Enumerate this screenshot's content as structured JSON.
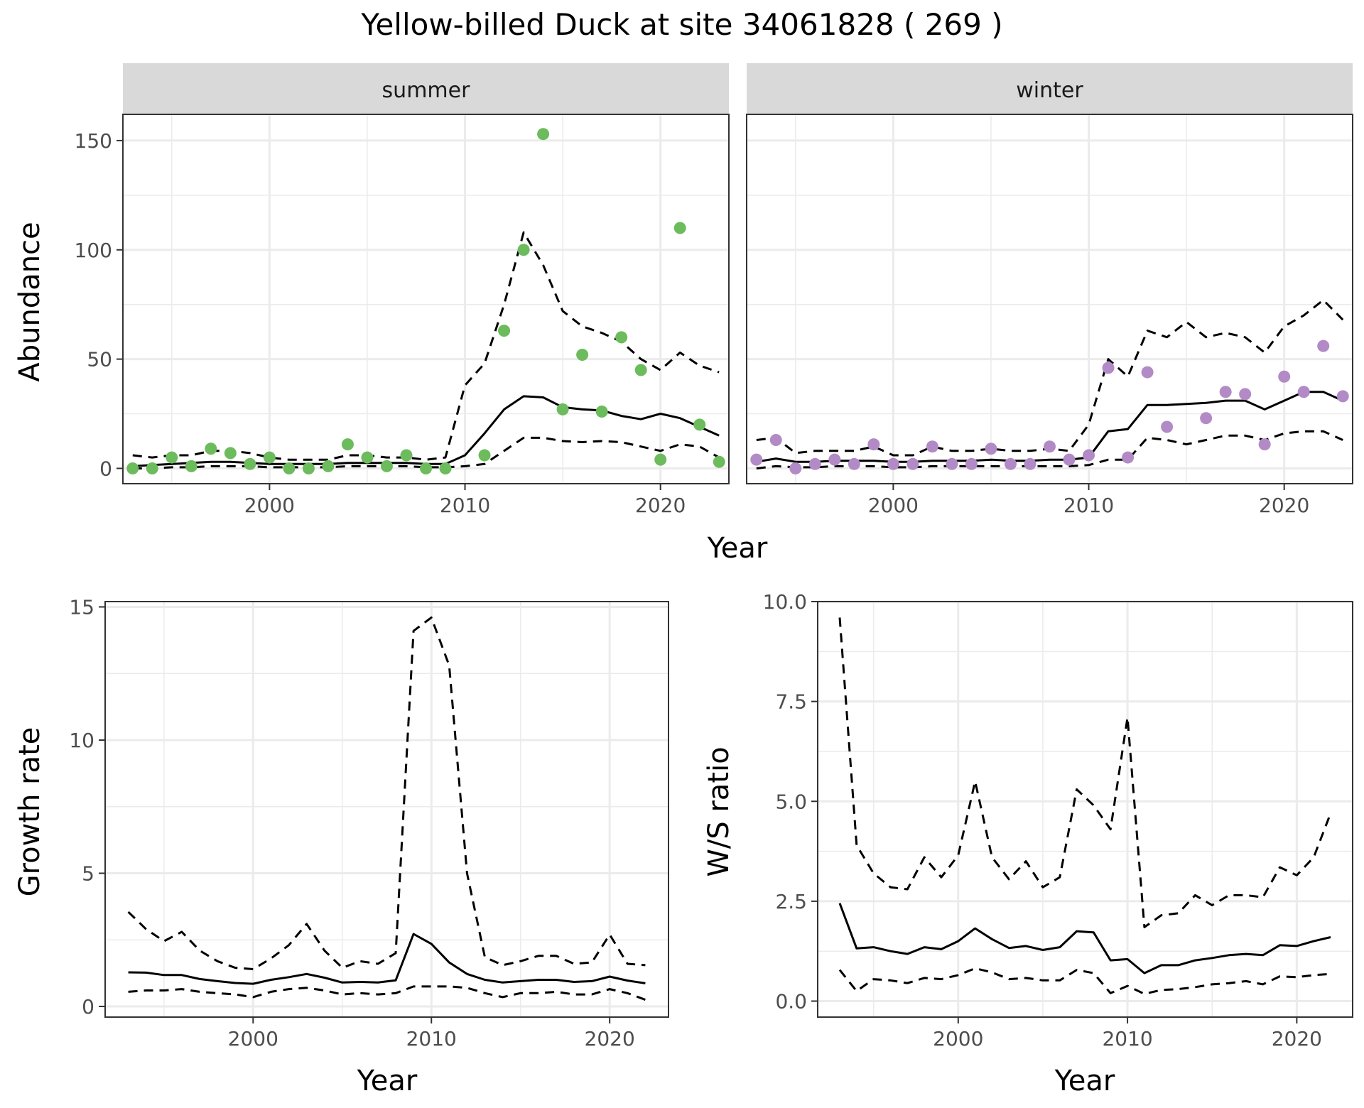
{
  "title": "Yellow-billed Duck at site 34061828 ( 269 )",
  "colors": {
    "summer_points": "#6cbb5c",
    "winter_points": "#b28ac6",
    "line": "#000000",
    "strip_fill": "#d9d9d9",
    "grid": "#ebebeb"
  },
  "chart_data": [
    {
      "type": "scatter",
      "facet": "summer",
      "xlabel": "Year",
      "ylabel": "Abundance",
      "xlim": [
        1992.5,
        2023.5
      ],
      "ylim": [
        -7,
        162
      ],
      "x_ticks": [
        2000,
        2010,
        2020
      ],
      "y_ticks": [
        0,
        50,
        100,
        150
      ],
      "grid": true,
      "points": {
        "x": [
          1993,
          1994,
          1995,
          1996,
          1997,
          1998,
          1999,
          2000,
          2001,
          2002,
          2003,
          2004,
          2005,
          2006,
          2007,
          2008,
          2009,
          2011,
          2012,
          2013,
          2014,
          2015,
          2016,
          2017,
          2018,
          2019,
          2020,
          2021,
          2022,
          2023
        ],
        "y": [
          0,
          0,
          5,
          1,
          9,
          7,
          2,
          5,
          0,
          0,
          1,
          11,
          5,
          1,
          6,
          0,
          0,
          6,
          63,
          100,
          153,
          27,
          52,
          26,
          60,
          45,
          4,
          110,
          20,
          3
        ]
      },
      "series": [
        {
          "name": "",
          "style": "solid",
          "x": [
            1993,
            1994,
            1995,
            1996,
            1997,
            1998,
            1999,
            2000,
            2001,
            2002,
            2003,
            2004,
            2005,
            2006,
            2007,
            2008,
            2009,
            2010,
            2011,
            2012,
            2013,
            2014,
            2015,
            2016,
            2017,
            2018,
            2019,
            2020,
            2021,
            2022,
            2023
          ],
          "y": [
            1,
            1.5,
            2,
            2.5,
            3,
            3,
            2.5,
            2,
            2,
            2,
            2,
            2.5,
            2.5,
            2.5,
            2.5,
            2,
            2,
            6,
            16,
            27,
            33,
            32.5,
            28,
            27,
            26.5,
            24,
            22.5,
            25,
            23,
            19,
            15
          ]
        },
        {
          "name": "",
          "style": "dashed",
          "x": [
            1993,
            1994,
            1995,
            1996,
            1997,
            1998,
            1999,
            2000,
            2001,
            2002,
            2003,
            2004,
            2005,
            2006,
            2007,
            2008,
            2009,
            2010,
            2011,
            2012,
            2013,
            2014,
            2015,
            2016,
            2017,
            2018,
            2019,
            2020,
            2021,
            2022,
            2023
          ],
          "y": [
            6,
            5,
            6,
            6,
            8,
            8,
            7,
            5,
            4,
            4,
            4,
            6,
            6,
            5,
            5,
            4,
            5,
            38,
            48,
            75,
            108,
            93,
            72,
            65,
            62,
            58,
            50,
            45,
            53,
            47,
            44
          ]
        },
        {
          "name": "",
          "style": "dashed",
          "x": [
            1993,
            1994,
            1995,
            1996,
            1997,
            1998,
            1999,
            2000,
            2001,
            2002,
            2003,
            2004,
            2005,
            2006,
            2007,
            2008,
            2009,
            2010,
            2011,
            2012,
            2013,
            2014,
            2015,
            2016,
            2017,
            2018,
            2019,
            2020,
            2021,
            2022,
            2023
          ],
          "y": [
            0,
            0,
            0.5,
            0.5,
            1,
            1,
            1,
            0.5,
            0.5,
            0.5,
            0.5,
            1,
            1,
            1,
            1,
            0.5,
            0.5,
            1,
            2,
            8,
            14,
            14,
            12.5,
            12,
            12.5,
            12,
            10,
            8,
            11,
            10,
            5
          ]
        }
      ]
    },
    {
      "type": "scatter",
      "facet": "winter",
      "xlabel": "Year",
      "ylabel": "Abundance",
      "xlim": [
        1992.5,
        2023.5
      ],
      "ylim": [
        -7,
        162
      ],
      "x_ticks": [
        2000,
        2010,
        2020
      ],
      "y_ticks": [
        0,
        50,
        100,
        150
      ],
      "grid": true,
      "points": {
        "x": [
          1993,
          1994,
          1995,
          1996,
          1997,
          1998,
          1999,
          2000,
          2001,
          2002,
          2003,
          2004,
          2005,
          2006,
          2007,
          2008,
          2009,
          2010,
          2011,
          2012,
          2013,
          2014,
          2016,
          2017,
          2018,
          2019,
          2020,
          2021,
          2022,
          2023
        ],
        "y": [
          4,
          13,
          0,
          2,
          4,
          2,
          11,
          2,
          2,
          10,
          2,
          2,
          9,
          2,
          2,
          10,
          4,
          6,
          46,
          5,
          44,
          19,
          23,
          35,
          34,
          11,
          42,
          35,
          56,
          33
        ]
      },
      "series": [
        {
          "name": "",
          "style": "solid",
          "x": [
            1993,
            1994,
            1995,
            1996,
            1997,
            1998,
            1999,
            2000,
            2001,
            2002,
            2003,
            2004,
            2005,
            2006,
            2007,
            2008,
            2009,
            2010,
            2011,
            2012,
            2013,
            2014,
            2015,
            2016,
            2017,
            2018,
            2019,
            2020,
            2021,
            2022,
            2023
          ],
          "y": [
            3,
            4.5,
            3,
            3,
            3.5,
            3.5,
            3.5,
            3,
            3,
            3.5,
            3.5,
            3.5,
            4,
            3.5,
            3.5,
            4,
            4,
            5,
            17,
            18,
            29,
            29,
            29.5,
            30,
            31,
            31,
            27,
            31,
            35,
            35,
            31
          ]
        },
        {
          "name": "",
          "style": "dashed",
          "x": [
            1993,
            1994,
            1995,
            1996,
            1997,
            1998,
            1999,
            2000,
            2001,
            2002,
            2003,
            2004,
            2005,
            2006,
            2007,
            2008,
            2009,
            2010,
            2011,
            2012,
            2013,
            2014,
            2015,
            2016,
            2017,
            2018,
            2019,
            2020,
            2021,
            2022,
            2023
          ],
          "y": [
            13,
            14,
            7,
            8,
            8,
            8,
            10,
            6,
            6,
            10,
            8,
            8,
            9,
            8,
            8,
            9,
            8,
            20,
            50,
            42,
            63,
            60,
            67,
            60,
            62,
            60,
            53,
            65,
            70,
            77,
            68
          ]
        },
        {
          "name": "",
          "style": "dashed",
          "x": [
            1993,
            1994,
            1995,
            1996,
            1997,
            1998,
            1999,
            2000,
            2001,
            2002,
            2003,
            2004,
            2005,
            2006,
            2007,
            2008,
            2009,
            2010,
            2011,
            2012,
            2013,
            2014,
            2015,
            2016,
            2017,
            2018,
            2019,
            2020,
            2021,
            2022,
            2023
          ],
          "y": [
            0,
            1,
            0.5,
            0.5,
            1,
            1,
            1,
            0.5,
            0.5,
            1,
            1,
            1,
            1,
            1,
            1,
            1,
            1,
            1.5,
            4,
            4,
            14,
            13,
            11,
            13,
            15,
            15,
            13,
            16,
            17,
            17,
            13
          ]
        }
      ]
    },
    {
      "type": "line",
      "xlabel": "Year",
      "ylabel": "Growth rate",
      "xlim": [
        1991.7,
        2023.3
      ],
      "ylim": [
        -0.4,
        15.2
      ],
      "x_ticks": [
        2000,
        2010,
        2020
      ],
      "y_ticks": [
        0,
        5,
        10,
        15
      ],
      "grid": true,
      "series": [
        {
          "name": "",
          "style": "solid",
          "x": [
            1993,
            1994,
            1995,
            1996,
            1997,
            1998,
            1999,
            2000,
            2001,
            2002,
            2003,
            2004,
            2005,
            2006,
            2007,
            2008,
            2009,
            2010,
            2011,
            2012,
            2013,
            2014,
            2015,
            2016,
            2017,
            2018,
            2019,
            2020,
            2021,
            2022
          ],
          "y": [
            1.28,
            1.27,
            1.18,
            1.18,
            1.03,
            0.95,
            0.88,
            0.85,
            1.0,
            1.1,
            1.22,
            1.08,
            0.9,
            0.92,
            0.9,
            0.98,
            2.72,
            2.35,
            1.65,
            1.22,
            1.0,
            0.9,
            0.95,
            1.0,
            1.0,
            0.92,
            0.95,
            1.12,
            0.97,
            0.87
          ]
        },
        {
          "name": "",
          "style": "dashed",
          "x": [
            1993,
            1994,
            1995,
            1996,
            1997,
            1998,
            1999,
            2000,
            2001,
            2002,
            2003,
            2004,
            2005,
            2006,
            2007,
            2008,
            2009,
            2010,
            2011,
            2012,
            2013,
            2014,
            2015,
            2016,
            2017,
            2018,
            2019,
            2020,
            2021,
            2022
          ],
          "y": [
            3.55,
            2.9,
            2.45,
            2.8,
            2.1,
            1.7,
            1.45,
            1.4,
            1.8,
            2.3,
            3.1,
            2.1,
            1.45,
            1.7,
            1.6,
            2.0,
            14.1,
            14.6,
            12.8,
            5.0,
            1.85,
            1.55,
            1.7,
            1.9,
            1.9,
            1.6,
            1.65,
            2.7,
            1.6,
            1.55
          ]
        },
        {
          "name": "",
          "style": "dashed",
          "x": [
            1993,
            1994,
            1995,
            1996,
            1997,
            1998,
            1999,
            2000,
            2001,
            2002,
            2003,
            2004,
            2005,
            2006,
            2007,
            2008,
            2009,
            2010,
            2011,
            2012,
            2013,
            2014,
            2015,
            2016,
            2017,
            2018,
            2019,
            2020,
            2021,
            2022
          ],
          "y": [
            0.55,
            0.6,
            0.6,
            0.65,
            0.55,
            0.5,
            0.45,
            0.35,
            0.55,
            0.65,
            0.7,
            0.6,
            0.45,
            0.5,
            0.45,
            0.5,
            0.75,
            0.75,
            0.75,
            0.7,
            0.5,
            0.35,
            0.5,
            0.5,
            0.55,
            0.45,
            0.45,
            0.65,
            0.5,
            0.25
          ]
        }
      ]
    },
    {
      "type": "line",
      "xlabel": "Year",
      "ylabel": "W/S ratio",
      "xlim": [
        1991.7,
        2023.3
      ],
      "ylim": [
        -0.4,
        10.0
      ],
      "x_ticks": [
        2000,
        2010,
        2020
      ],
      "y_ticks": [
        0.0,
        2.5,
        5.0,
        7.5,
        10.0
      ],
      "y_tick_labels": [
        "0.0",
        "2.5",
        "5.0",
        "7.5",
        "10.0"
      ],
      "grid": true,
      "series": [
        {
          "name": "",
          "style": "solid",
          "x": [
            1993,
            1994,
            1995,
            1996,
            1997,
            1998,
            1999,
            2000,
            2001,
            2002,
            2003,
            2004,
            2005,
            2006,
            2007,
            2008,
            2009,
            2010,
            2011,
            2012,
            2013,
            2014,
            2015,
            2016,
            2017,
            2018,
            2019,
            2020,
            2021,
            2022
          ],
          "y": [
            2.45,
            1.32,
            1.35,
            1.25,
            1.18,
            1.35,
            1.3,
            1.5,
            1.82,
            1.55,
            1.33,
            1.38,
            1.28,
            1.35,
            1.75,
            1.72,
            1.02,
            1.05,
            0.7,
            0.9,
            0.9,
            1.02,
            1.08,
            1.15,
            1.18,
            1.15,
            1.4,
            1.38,
            1.5,
            1.6
          ]
        },
        {
          "name": "",
          "style": "dashed",
          "x": [
            1993,
            1994,
            1995,
            1996,
            1997,
            1998,
            1999,
            2000,
            2001,
            2002,
            2003,
            2004,
            2005,
            2006,
            2007,
            2008,
            2009,
            2010,
            2011,
            2012,
            2013,
            2014,
            2015,
            2016,
            2017,
            2018,
            2019,
            2020,
            2021,
            2022
          ],
          "y": [
            9.6,
            3.9,
            3.2,
            2.85,
            2.8,
            3.6,
            3.1,
            3.65,
            5.5,
            3.6,
            3.05,
            3.5,
            2.85,
            3.1,
            5.3,
            4.9,
            4.3,
            7.1,
            1.85,
            2.15,
            2.2,
            2.65,
            2.4,
            2.65,
            2.65,
            2.6,
            3.35,
            3.15,
            3.6,
            4.7
          ]
        },
        {
          "name": "",
          "style": "dashed",
          "x": [
            1993,
            1994,
            1995,
            1996,
            1997,
            1998,
            1999,
            2000,
            2001,
            2002,
            2003,
            2004,
            2005,
            2006,
            2007,
            2008,
            2009,
            2010,
            2011,
            2012,
            2013,
            2014,
            2015,
            2016,
            2017,
            2018,
            2019,
            2020,
            2021,
            2022
          ],
          "y": [
            0.78,
            0.25,
            0.55,
            0.52,
            0.45,
            0.58,
            0.55,
            0.65,
            0.82,
            0.72,
            0.55,
            0.58,
            0.52,
            0.52,
            0.78,
            0.7,
            0.2,
            0.38,
            0.18,
            0.28,
            0.3,
            0.35,
            0.42,
            0.45,
            0.5,
            0.42,
            0.62,
            0.6,
            0.65,
            0.68
          ]
        }
      ]
    }
  ]
}
